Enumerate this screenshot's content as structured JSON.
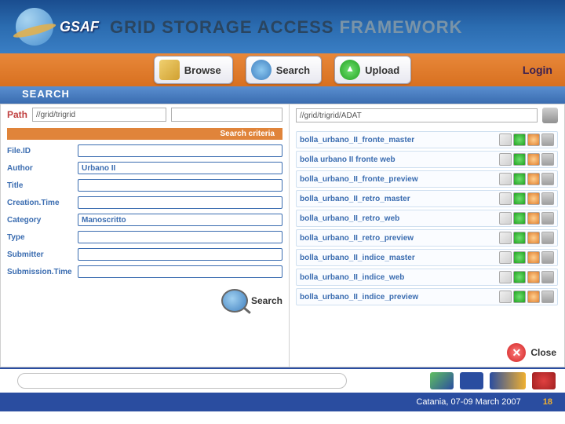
{
  "header": {
    "logo_text": "GSAF",
    "title_main": "GRID STORAGE ACCESS",
    "title_sub": "FRAMEWORK"
  },
  "nav": {
    "browse": "Browse",
    "search": "Search",
    "upload": "Upload",
    "login": "Login"
  },
  "panel_title": "SEARCH",
  "left": {
    "path_label": "Path",
    "path_value": "//grid/trigrid",
    "criteria_header": "Search criteria",
    "fields": [
      {
        "label": "File.ID",
        "value": ""
      },
      {
        "label": "Author",
        "value": "Urbano II"
      },
      {
        "label": "Title",
        "value": ""
      },
      {
        "label": "Creation.Time",
        "value": ""
      },
      {
        "label": "Category",
        "value": "Manoscritto"
      },
      {
        "label": "Type",
        "value": ""
      },
      {
        "label": "Submitter",
        "value": ""
      },
      {
        "label": "Submission.Time",
        "value": ""
      }
    ],
    "search_button": "Search"
  },
  "right": {
    "path_value": "//grid/trigrid/ADAT",
    "results": [
      "bolla_urbano_II_fronte_master",
      "bolla urbano II fronte web",
      "bolla_urbano_II_fronte_preview",
      "bolla_urbano_II_retro_master",
      "bolla_urbano_II_retro_web",
      "bolla_urbano_II_retro_preview",
      "bolla_urbano_II_indice_master",
      "bolla_urbano_II_indice_web",
      "bolla_urbano_II_indice_preview"
    ],
    "close_label": "Close"
  },
  "footer": {
    "location_date": "Catania, 07-09 March 2007",
    "page_number": "18"
  }
}
